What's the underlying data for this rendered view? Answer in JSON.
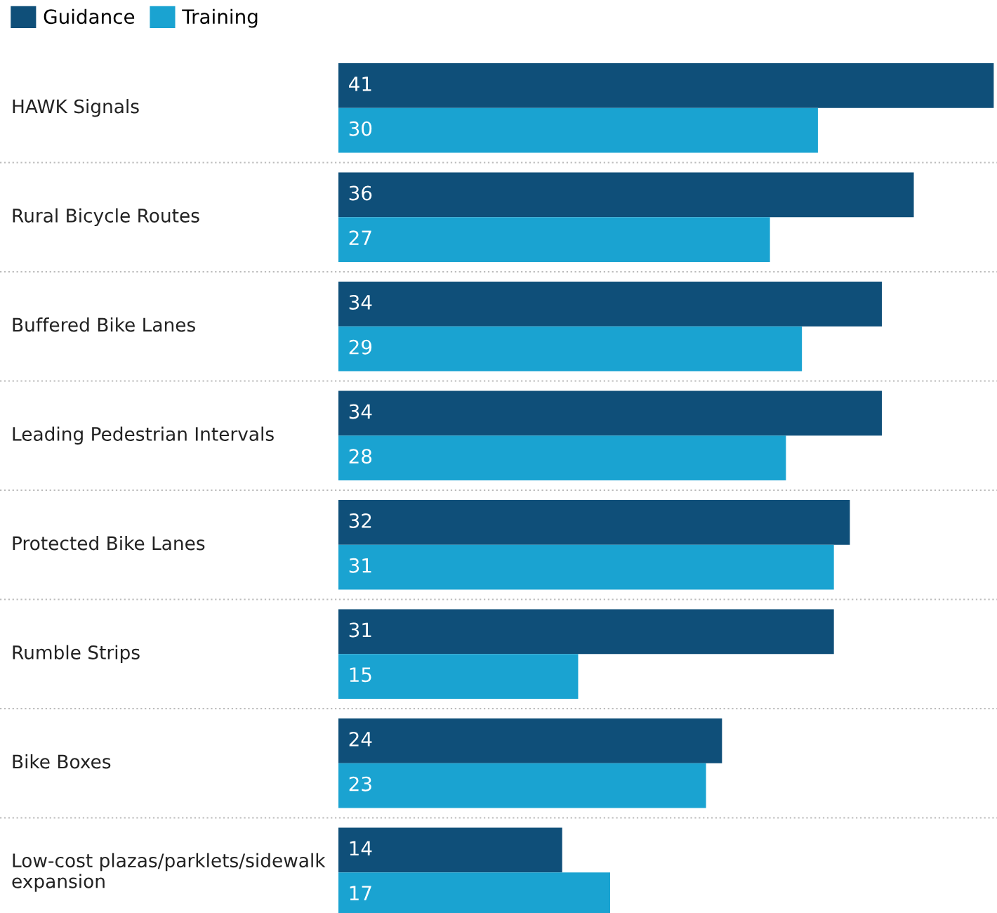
{
  "chart_data": {
    "type": "bar",
    "orientation": "horizontal",
    "legend": "top left",
    "grid": "y",
    "data_labels": true,
    "categories": [
      "HAWK Signals",
      "Rural Bicycle Routes",
      "Buffered Bike Lanes",
      "Leading Pedestrian Intervals",
      "Protected Bike Lanes",
      "Rumble Strips",
      "Bike Boxes",
      "Low-cost plazas/parklets/sidewalk\nexpansion"
    ],
    "series": [
      {
        "name": "Guidance",
        "color": "#0f4f79",
        "values": [
          41,
          36,
          34,
          34,
          32,
          31,
          24,
          14
        ]
      },
      {
        "name": "Training",
        "color": "#1aa3d1",
        "values": [
          30,
          27,
          29,
          28,
          31,
          15,
          23,
          17
        ]
      }
    ]
  }
}
